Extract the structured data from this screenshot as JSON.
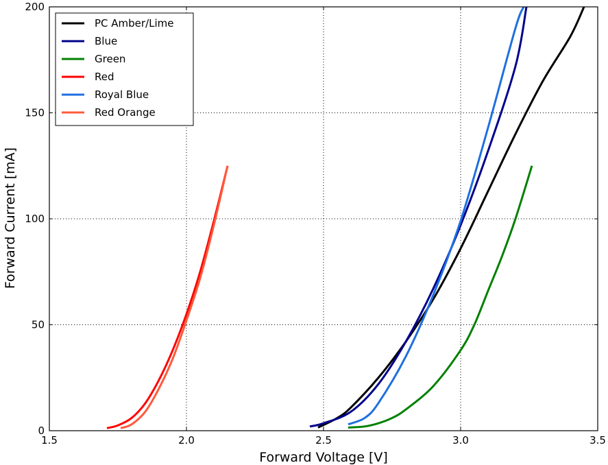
{
  "chart_data": {
    "type": "line",
    "xlabel": "Forward Voltage [V]",
    "ylabel": "Forward Current [mA]",
    "xlim": [
      1.5,
      3.5
    ],
    "ylim": [
      0,
      200
    ],
    "x_ticks": [
      1.5,
      2.0,
      2.5,
      3.0,
      3.5
    ],
    "x_tick_labels": [
      "1.5",
      "2.0",
      "2.5",
      "3.0",
      "3.5"
    ],
    "y_ticks": [
      0,
      50,
      100,
      150,
      200
    ],
    "y_tick_labels": [
      "0",
      "50",
      "100",
      "150",
      "200"
    ],
    "grid": true,
    "grid_style": "dotted",
    "legend_position": "top-left",
    "series": [
      {
        "name": "PC Amber/Lime",
        "color": "#000000",
        "points": [
          [
            2.48,
            1.5
          ],
          [
            2.55,
            6
          ],
          [
            2.6,
            11
          ],
          [
            2.7,
            25
          ],
          [
            2.8,
            42
          ],
          [
            2.9,
            62
          ],
          [
            3.0,
            86
          ],
          [
            3.1,
            113
          ],
          [
            3.2,
            140
          ],
          [
            3.3,
            165
          ],
          [
            3.4,
            186
          ],
          [
            3.45,
            200
          ]
        ]
      },
      {
        "name": "Blue",
        "color": "#00008b",
        "points": [
          [
            2.45,
            2
          ],
          [
            2.5,
            3.5
          ],
          [
            2.6,
            9
          ],
          [
            2.7,
            22
          ],
          [
            2.8,
            42
          ],
          [
            2.9,
            67
          ],
          [
            3.0,
            97
          ],
          [
            3.1,
            132
          ],
          [
            3.2,
            172
          ],
          [
            3.24,
            200
          ]
        ]
      },
      {
        "name": "Green",
        "color": "#008000",
        "points": [
          [
            2.59,
            1.5
          ],
          [
            2.65,
            2
          ],
          [
            2.7,
            3.5
          ],
          [
            2.75,
            6
          ],
          [
            2.8,
            10
          ],
          [
            2.9,
            21
          ],
          [
            3.0,
            38
          ],
          [
            3.05,
            50
          ],
          [
            3.1,
            66
          ],
          [
            3.15,
            82
          ],
          [
            3.2,
            100
          ],
          [
            3.26,
            125
          ]
        ]
      },
      {
        "name": "Red",
        "color": "#ff0000",
        "points": [
          [
            1.71,
            1.2
          ],
          [
            1.75,
            2.5
          ],
          [
            1.8,
            6
          ],
          [
            1.85,
            13
          ],
          [
            1.9,
            24
          ],
          [
            1.95,
            38
          ],
          [
            2.0,
            55
          ],
          [
            2.05,
            75
          ],
          [
            2.1,
            99
          ],
          [
            2.15,
            125
          ]
        ]
      },
      {
        "name": "Royal Blue",
        "color": "#1e6fe0",
        "points": [
          [
            2.59,
            3
          ],
          [
            2.65,
            6
          ],
          [
            2.7,
            13
          ],
          [
            2.8,
            35
          ],
          [
            2.9,
            64
          ],
          [
            3.0,
            99
          ],
          [
            3.1,
            143
          ],
          [
            3.2,
            190
          ],
          [
            3.23,
            200
          ]
        ]
      },
      {
        "name": "Red Orange",
        "color": "#ff5a3c",
        "points": [
          [
            1.76,
            1.2
          ],
          [
            1.8,
            3
          ],
          [
            1.85,
            9
          ],
          [
            1.9,
            20
          ],
          [
            1.95,
            34
          ],
          [
            2.0,
            52
          ],
          [
            2.05,
            72
          ],
          [
            2.1,
            97
          ],
          [
            2.15,
            125
          ]
        ]
      }
    ]
  }
}
